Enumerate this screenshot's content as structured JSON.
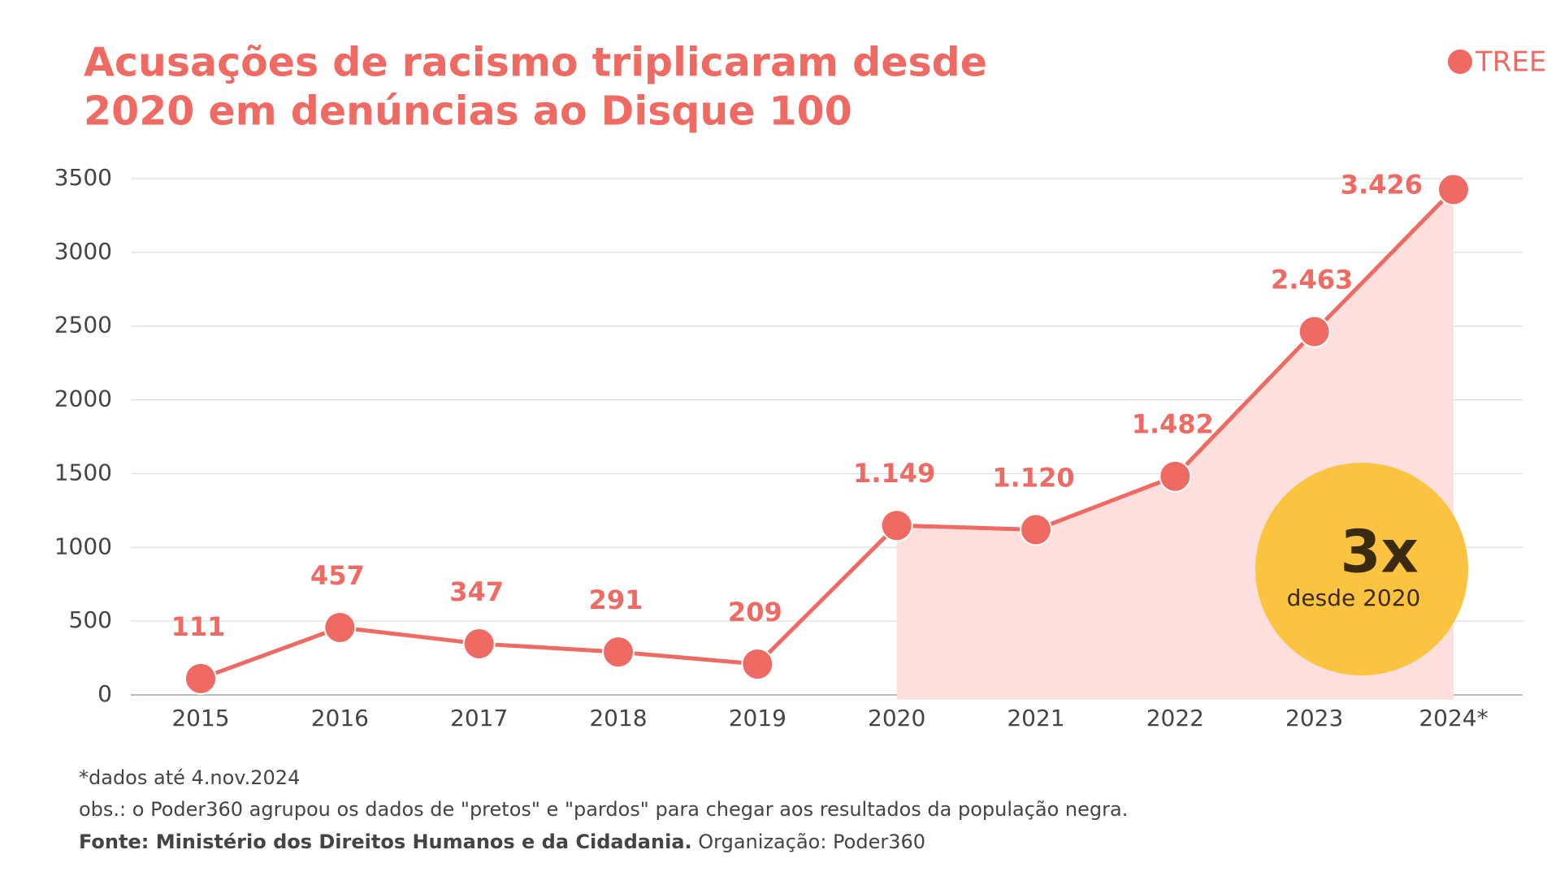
{
  "chart_data": {
    "type": "line",
    "title": "Acusações de racismo triplicaram desde",
    "title_line2": "2020 em denúncias ao Disque 100",
    "logo": "TREE",
    "categories": [
      "2015",
      "2016",
      "2017",
      "2018",
      "2019",
      "2020",
      "2021",
      "2022",
      "2023",
      "2024*"
    ],
    "values": [
      111,
      457,
      347,
      291,
      209,
      1149,
      1120,
      1482,
      2463,
      3426
    ],
    "value_labels": [
      "111",
      "457",
      "347",
      "291",
      "209",
      "1.149",
      "1.120",
      "1.482",
      "2.463",
      "3.426"
    ],
    "color": "#ee6a62",
    "area_color": "#fde0de",
    "ylim": [
      0,
      3500
    ],
    "yticks": [
      0,
      500,
      1000,
      1500,
      2000,
      2500,
      3000,
      3500
    ],
    "grid": true,
    "callout": {
      "big": "3x",
      "small": "desde 2020",
      "color": "#fbc33f"
    },
    "notes": [
      "*dados até 4.nov.2024",
      "obs.: o Poder360 agrupou os dados de \"pretos\" e \"pardos\" para chegar aos resultados da população negra."
    ],
    "source_bold": "Fonte: Ministério dos Direitos Humanos e da Cidadania.",
    "source_rest": "Organização: Poder360"
  }
}
